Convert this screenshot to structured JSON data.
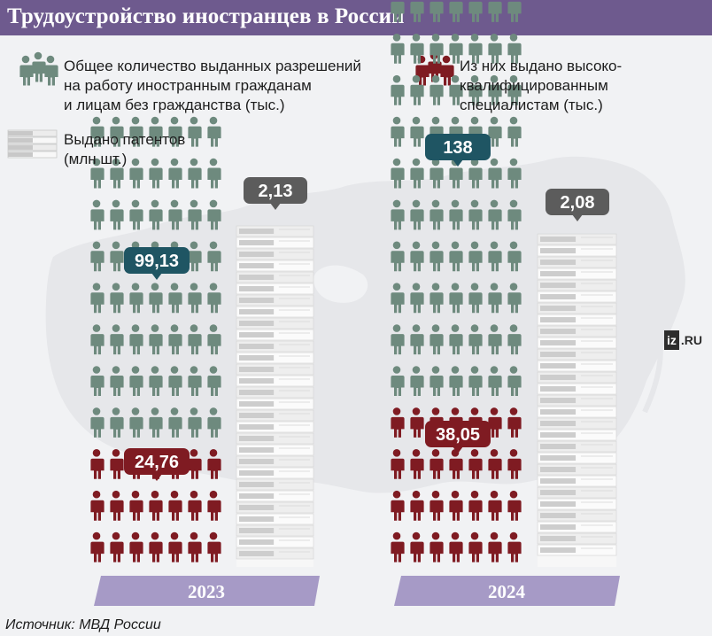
{
  "title": "Трудоустройство иностранцев в России",
  "legend": {
    "total_permits": "Общее количество выданных разрешений\nна работу иностранным гражданам\nи лицам без гражданства (тыс.)",
    "highly_qualified": "Из них выдано высоко-\nквалифицированным\nспециалистам (тыс.)",
    "patents": "Выдано патентов\n(млн шт.)"
  },
  "colors": {
    "title_bg": "#6e5a8e",
    "total_people": "#6e8a7e",
    "highly_qualified_people": "#7f1b22",
    "callout_total": "#1f5563",
    "callout_hq": "#7f1b22",
    "callout_patents": "#5c5c5c",
    "year_bar": "#a69ac6"
  },
  "chart_data": {
    "type": "pictogram",
    "categories": [
      "2023",
      "2024"
    ],
    "series": [
      {
        "name": "Общее количество выданных разрешений на работу иностранным гражданам и лицам без гражданства (тыс.)",
        "values": [
          99.13,
          138
        ],
        "labels": [
          "99,13",
          "138"
        ]
      },
      {
        "name": "Из них выдано высококвалифицированным специалистам (тыс.)",
        "values": [
          24.76,
          38.05
        ],
        "labels": [
          "24,76",
          "38,05"
        ]
      },
      {
        "name": "Выдано патентов (млн шт.)",
        "values": [
          2.13,
          2.08
        ],
        "labels": [
          "2,13",
          "2,08"
        ]
      }
    ]
  },
  "logo": {
    "box": "iz",
    "rest": ".RU"
  },
  "source": "Источник: МВД России"
}
